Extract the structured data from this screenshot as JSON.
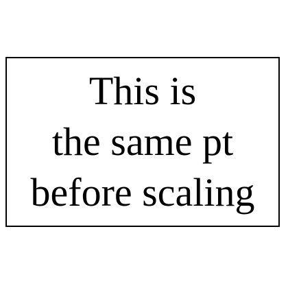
{
  "text_box": {
    "lines": [
      "This is",
      "the same pt",
      "before scaling"
    ]
  }
}
